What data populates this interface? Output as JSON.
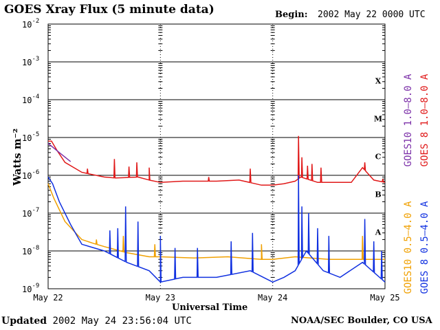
{
  "header": {
    "title": "GOES Xray Flux (5 minute data)",
    "begin_label": "Begin:",
    "begin_value": "2002 May 22 0000 UTC"
  },
  "footer": {
    "updated_label": "Updated",
    "updated_value": "2002 May 24 23:56:04 UTC",
    "source": "NOAA/SEC Boulder, CO USA"
  },
  "chart_data": {
    "type": "line",
    "title": "GOES Xray Flux (5 minute data)",
    "xlabel": "Universal Time",
    "ylabel": "Watts m⁻²",
    "y_scale": "log",
    "ylim": [
      1e-09,
      0.01
    ],
    "y_tick_exponents": [
      -2,
      -3,
      -4,
      -5,
      -6,
      -7,
      -8,
      -9
    ],
    "x_unit": "days since 2002 May 22 0000 UTC",
    "xlim": [
      0,
      3
    ],
    "x_tick_labels": [
      "May 22",
      "May 23",
      "May 24",
      "May 25"
    ],
    "x_tick_positions": [
      0,
      1,
      2,
      3
    ],
    "grid": "horizontal at each decade",
    "flare_classes": [
      {
        "label": "X",
        "level": 0.0001
      },
      {
        "label": "M",
        "level": 1e-05
      },
      {
        "label": "C",
        "level": 1e-06
      },
      {
        "label": "B",
        "level": 1e-07
      },
      {
        "label": "A",
        "level": 1e-08
      }
    ],
    "legend_placement": "right, vertical",
    "legend": [
      {
        "label": "GOES10 1.0–8.0 A",
        "color": "#7b2fa8"
      },
      {
        "label": "GOES 8 1.0–8.0 A",
        "color": "#e01818"
      },
      {
        "label": "GOES10 0.5–4.0 A",
        "color": "#f0a000"
      },
      {
        "label": "GOES 8 0.5–4.0 A",
        "color": "#1030e0"
      }
    ],
    "series": [
      {
        "name": "GOES 8 1.0–8.0 A",
        "color": "#e01818",
        "x": [
          0,
          0.03,
          0.08,
          0.15,
          0.3,
          0.5,
          0.6,
          0.8,
          0.9,
          1.0,
          1.2,
          1.5,
          1.7,
          1.9,
          2.0,
          2.1,
          2.2,
          2.25,
          2.4,
          2.55,
          2.7,
          2.8,
          2.9,
          3.0
        ],
        "y": [
          8e-06,
          8e-06,
          4.5e-06,
          2.2e-06,
          1.2e-06,
          9e-07,
          8.5e-07,
          9e-07,
          7.5e-07,
          6.5e-07,
          7e-07,
          7e-07,
          7.5e-07,
          5.5e-07,
          5.5e-07,
          6e-07,
          7e-07,
          9e-07,
          6.5e-07,
          6.5e-07,
          6.5e-07,
          1.6e-06,
          7.5e-07,
          6.5e-07
        ],
        "spikes": [
          {
            "x": 0.35,
            "y": 1.5e-06
          },
          {
            "x": 0.59,
            "y": 2.7e-06
          },
          {
            "x": 0.72,
            "y": 1.7e-06
          },
          {
            "x": 0.79,
            "y": 2.2e-06
          },
          {
            "x": 0.9,
            "y": 1.6e-06
          },
          {
            "x": 1.43,
            "y": 9e-07
          },
          {
            "x": 1.8,
            "y": 1.5e-06
          },
          {
            "x": 2.23,
            "y": 1.1e-05
          },
          {
            "x": 2.26,
            "y": 3e-06
          },
          {
            "x": 2.31,
            "y": 1.8e-06
          },
          {
            "x": 2.35,
            "y": 2e-06
          },
          {
            "x": 2.43,
            "y": 1.6e-06
          },
          {
            "x": 2.82,
            "y": 2.2e-06
          },
          {
            "x": 2.98,
            "y": 8e-07
          }
        ]
      },
      {
        "name": "GOES10 1.0–8.0 A",
        "color": "#7b2fa8",
        "x": [
          0,
          0.1,
          0.2
        ],
        "y": [
          7e-06,
          4e-06,
          2.3e-06
        ],
        "spikes": []
      },
      {
        "name": "GOES10 0.5–4.0 A",
        "color": "#f0a000",
        "x": [
          0,
          0.05,
          0.15,
          0.3,
          0.4,
          0.5,
          0.7,
          0.9,
          1.0,
          1.3,
          1.6,
          1.9,
          2.0,
          2.2,
          2.5,
          2.7,
          3.0
        ],
        "y": [
          6e-07,
          2.5e-07,
          6e-08,
          2e-08,
          1.6e-08,
          1.3e-08,
          9e-09,
          7e-09,
          7e-09,
          6.5e-09,
          7e-09,
          6e-09,
          6e-09,
          7e-09,
          6e-09,
          6e-09,
          6e-09
        ],
        "spikes": [
          {
            "x": 0.43,
            "y": 2e-08
          },
          {
            "x": 0.67,
            "y": 2.5e-08
          },
          {
            "x": 0.95,
            "y": 1.5e-08
          },
          {
            "x": 1.9,
            "y": 1.5e-08
          },
          {
            "x": 2.23,
            "y": 2e-08
          },
          {
            "x": 2.8,
            "y": 2.5e-08
          }
        ]
      },
      {
        "name": "GOES 8 0.5–4.0 A",
        "color": "#1030e0",
        "x": [
          0,
          0.04,
          0.1,
          0.2,
          0.3,
          0.5,
          0.7,
          0.9,
          1.0,
          1.2,
          1.5,
          1.8,
          2.0,
          2.1,
          2.2,
          2.3,
          2.45,
          2.6,
          2.8,
          3.0
        ],
        "y": [
          9e-07,
          6e-07,
          2e-07,
          5e-08,
          1.5e-08,
          1e-08,
          5e-09,
          3e-09,
          1.5e-09,
          2e-09,
          2e-09,
          3e-09,
          1.5e-09,
          2e-09,
          3e-09,
          1e-08,
          3e-09,
          2e-09,
          5e-09,
          1.5e-09
        ],
        "spikes": [
          {
            "x": 0.55,
            "y": 3.5e-08
          },
          {
            "x": 0.62,
            "y": 4e-08
          },
          {
            "x": 0.69,
            "y": 1.5e-07
          },
          {
            "x": 0.8,
            "y": 6e-08
          },
          {
            "x": 1.0,
            "y": 2.5e-08
          },
          {
            "x": 1.13,
            "y": 1.2e-08
          },
          {
            "x": 1.33,
            "y": 1.2e-08
          },
          {
            "x": 1.63,
            "y": 1.8e-08
          },
          {
            "x": 1.82,
            "y": 3e-08
          },
          {
            "x": 2.23,
            "y": 1e-06
          },
          {
            "x": 2.26,
            "y": 1.5e-07
          },
          {
            "x": 2.32,
            "y": 1e-07
          },
          {
            "x": 2.4,
            "y": 4e-08
          },
          {
            "x": 2.5,
            "y": 2.5e-08
          },
          {
            "x": 2.82,
            "y": 7e-08
          },
          {
            "x": 2.9,
            "y": 1.8e-08
          },
          {
            "x": 2.97,
            "y": 1e-08
          }
        ]
      }
    ]
  }
}
